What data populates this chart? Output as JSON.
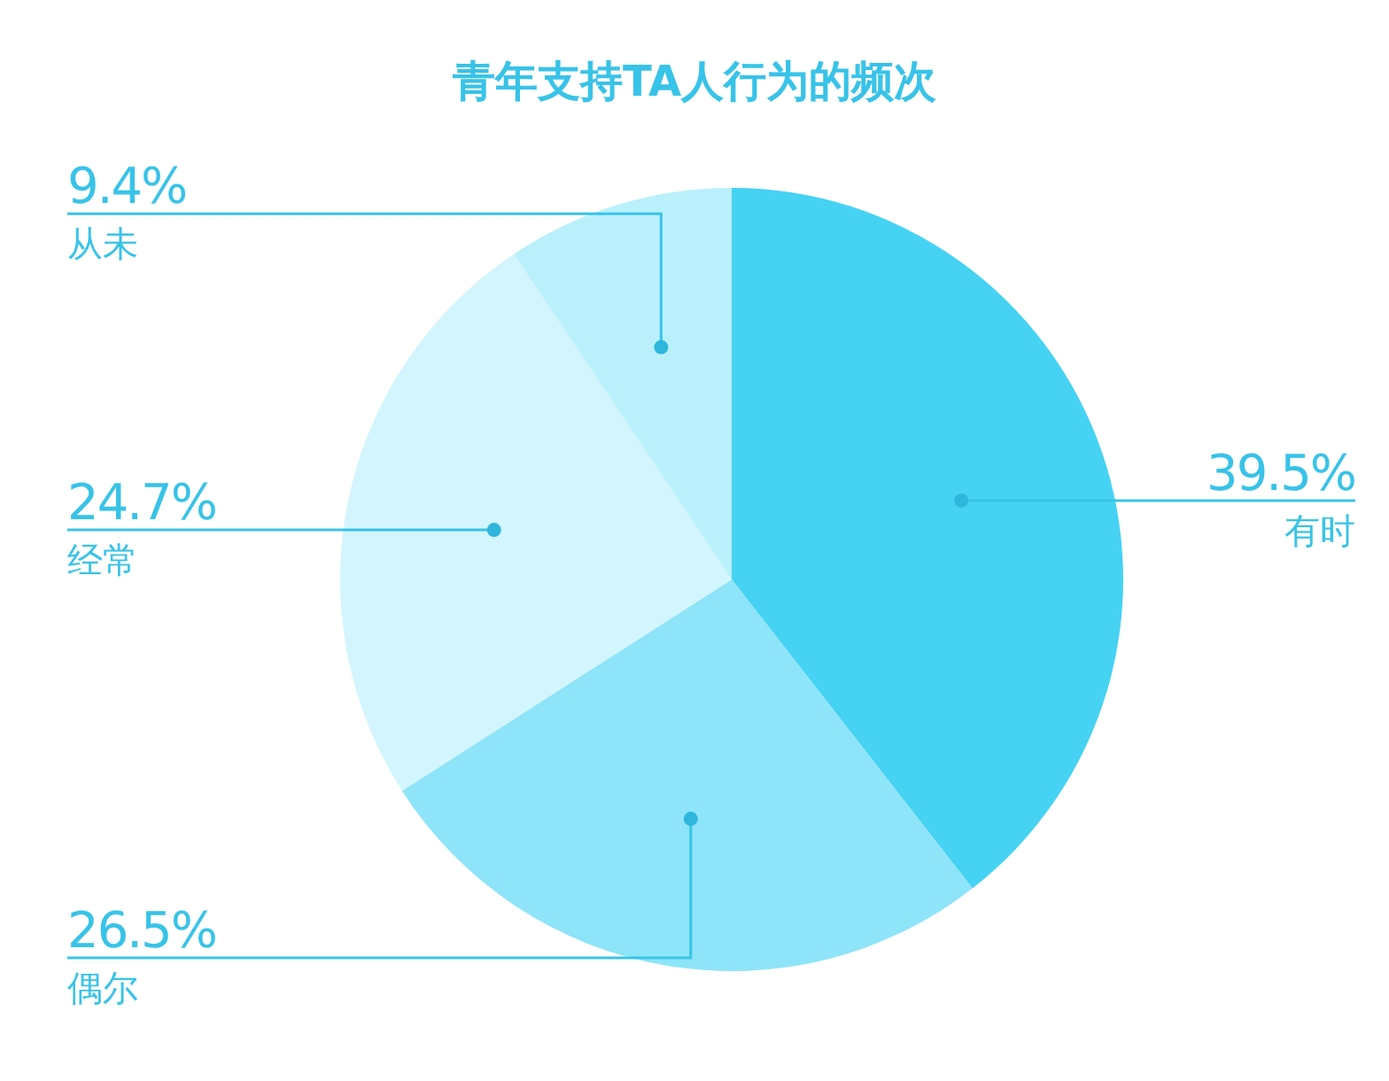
{
  "chart_data": {
    "type": "pie",
    "title": "青年支持TA人行为的频次",
    "categories": [
      "有时",
      "偶尔",
      "经常",
      "从未"
    ],
    "values": [
      39.5,
      26.5,
      24.7,
      9.4
    ],
    "value_labels": [
      "39.5%",
      "26.5%",
      "24.7%",
      "9.4%"
    ],
    "colors": [
      "#46d2f3",
      "#8ee4f9",
      "#d3f5fd",
      "#b9f0fc"
    ]
  }
}
